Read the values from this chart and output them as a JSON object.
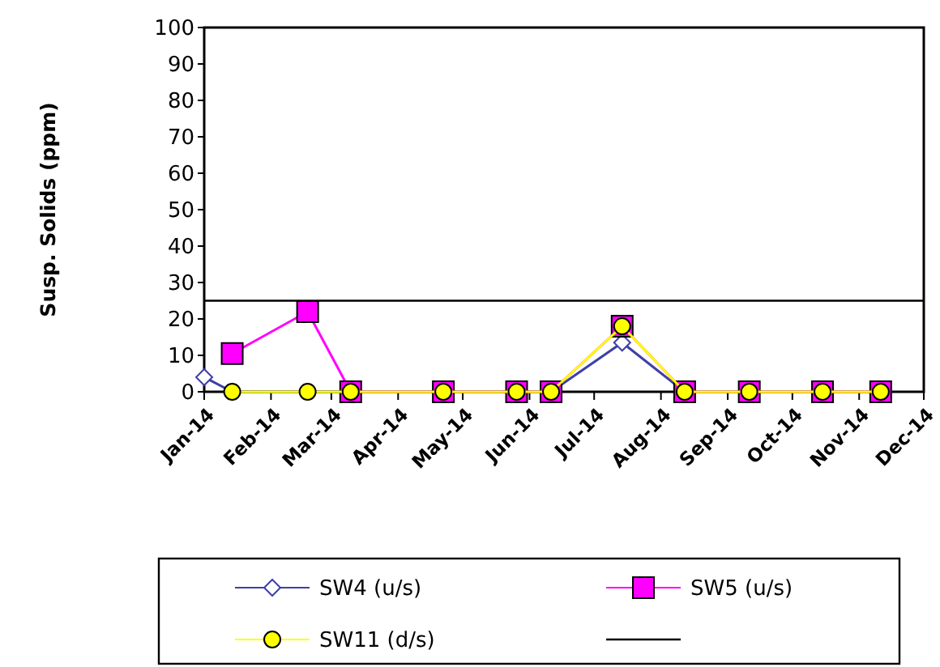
{
  "chart_data": {
    "type": "line",
    "ylabel": "Susp. Solids (ppm)",
    "xlim": [
      "2014-01-01",
      "2014-12-01"
    ],
    "xticks": [
      {
        "value": "2014-01-01",
        "label": "Jan-14"
      },
      {
        "value": "2014-02-01",
        "label": "Feb-14"
      },
      {
        "value": "2014-03-01",
        "label": "Mar-14"
      },
      {
        "value": "2014-04-01",
        "label": "Apr-14"
      },
      {
        "value": "2014-05-01",
        "label": "May-14"
      },
      {
        "value": "2014-06-01",
        "label": "Jun-14"
      },
      {
        "value": "2014-07-01",
        "label": "Jul-14"
      },
      {
        "value": "2014-08-01",
        "label": "Aug-14"
      },
      {
        "value": "2014-09-01",
        "label": "Sep-14"
      },
      {
        "value": "2014-10-01",
        "label": "Oct-14"
      },
      {
        "value": "2014-11-01",
        "label": "Nov-14"
      },
      {
        "value": "2014-12-01",
        "label": "Dec-14"
      }
    ],
    "ylim": [
      0,
      100
    ],
    "yticks": [
      0,
      10,
      20,
      30,
      40,
      50,
      60,
      70,
      80,
      90,
      100
    ],
    "grid": false,
    "legend": "bottom",
    "series": [
      {
        "name": "SW4 (u/s)",
        "color": "#3f3fa8",
        "marker": "diamond",
        "x": [
          "2014-01-01",
          "2014-01-14",
          "2014-06-11",
          "2014-07-14",
          "2014-08-12"
        ],
        "values": [
          4,
          0,
          0,
          13.5,
          0
        ]
      },
      {
        "name": "SW5 (u/s)",
        "color": "#ff00ff",
        "marker": "square",
        "x": [
          "2014-01-14",
          "2014-02-18",
          "2014-03-10",
          "2014-04-22",
          "2014-05-26",
          "2014-06-11",
          "2014-07-14",
          "2014-08-12",
          "2014-09-11",
          "2014-10-15",
          "2014-11-11"
        ],
        "values": [
          10.5,
          22,
          0,
          0,
          0,
          0,
          18,
          0,
          0,
          0,
          0
        ]
      },
      {
        "name": "SW11 (d/s)",
        "color": "#ffff00",
        "marker": "circle",
        "x": [
          "2014-01-14",
          "2014-02-18",
          "2014-03-10",
          "2014-04-22",
          "2014-05-26",
          "2014-06-11",
          "2014-07-14",
          "2014-08-12",
          "2014-09-11",
          "2014-10-15",
          "2014-11-11"
        ],
        "values": [
          0,
          0,
          0,
          0,
          0,
          0,
          18,
          0,
          0,
          0,
          0
        ]
      }
    ],
    "ref_lines": [
      {
        "axis": "y",
        "value": 25,
        "color": "#000000",
        "line_style": "solid"
      }
    ]
  }
}
